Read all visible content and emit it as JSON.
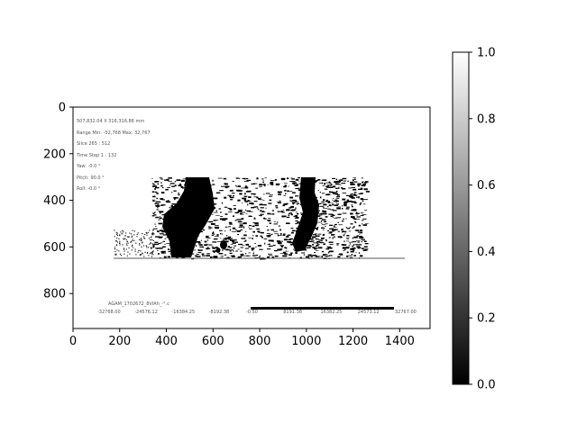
{
  "chart_data": {
    "type": "heatmap",
    "title": "",
    "xlabel": "",
    "ylabel": "",
    "xlim": [
      0,
      1530
    ],
    "ylim": [
      950,
      0
    ],
    "xticks": [
      0,
      200,
      400,
      600,
      800,
      1000,
      1200,
      1400
    ],
    "yticks": [
      0,
      200,
      400,
      600,
      800
    ],
    "colorbar": {
      "cmap": "gray",
      "vmin": 0.0,
      "vmax": 1.0,
      "ticks": [
        0.0,
        0.2,
        0.4,
        0.6,
        0.8,
        1.0
      ],
      "tick_labels": [
        "0.0",
        "0.2",
        "0.4",
        "0.6",
        "0.8",
        "1.0"
      ]
    },
    "image_overlay": {
      "info_lines": [
        "507,832.04 X 316,316.86 mm",
        "Range Min: -32,768 Max: 32,767",
        "Slice 265 : 512",
        "Time Step 1 : 132",
        "Yaw: -0.0 °",
        "Pitch: 90.0 °",
        "Roll: -0.0 °"
      ],
      "file_label": "AGAM_1702672_8VIAh_-°.c",
      "scale_labels": [
        "-32768.00",
        "-24576.12",
        "-16384.25",
        "-8192.38",
        "-0.50",
        "8191.38",
        "16382.25",
        "24573.12",
        "32767.00"
      ]
    }
  }
}
